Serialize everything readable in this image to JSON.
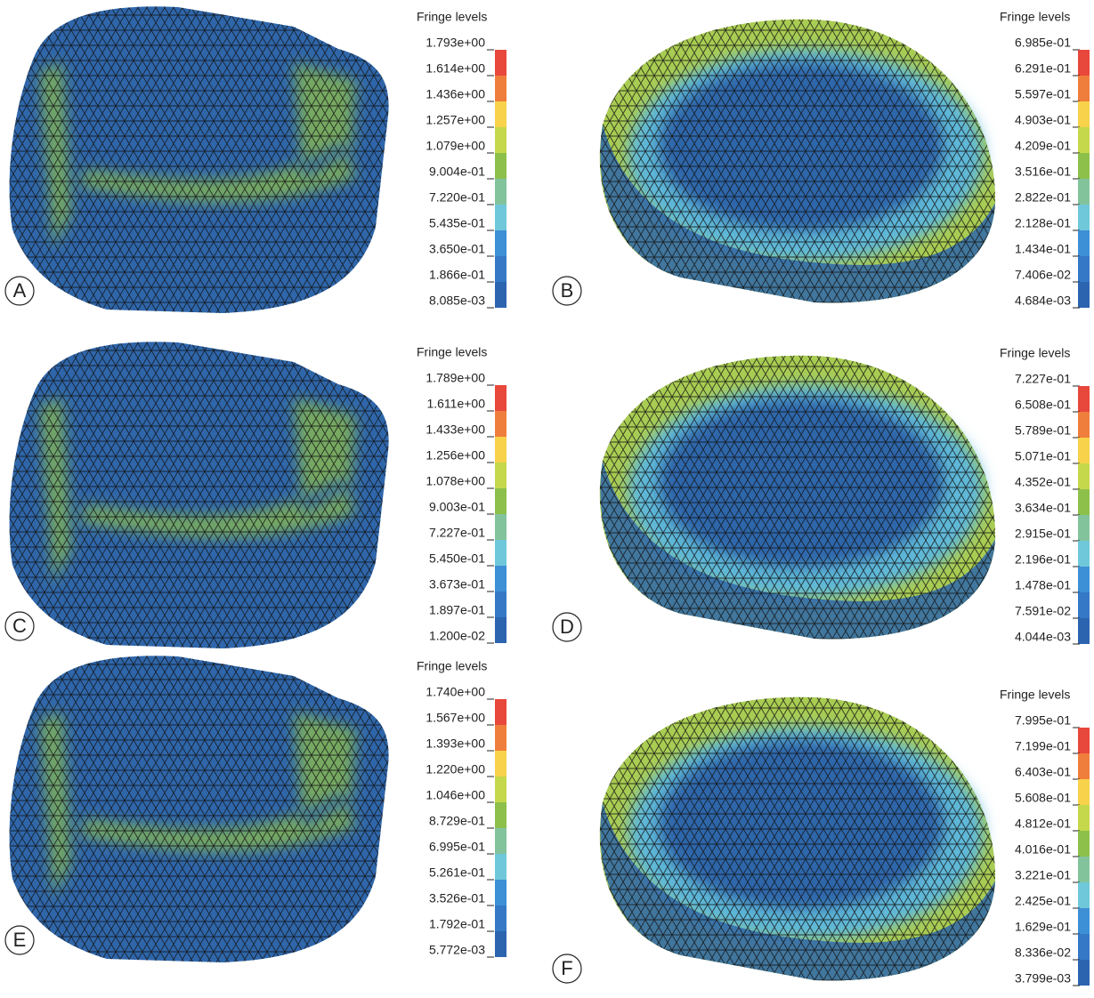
{
  "panels": [
    {
      "label": "A",
      "legend_title": "Fringe levels",
      "levels": [
        "1.793e+00",
        "1.614e+00",
        "1.436e+00",
        "1.257e+00",
        "1.079e+00",
        "9.004e-01",
        "7.220e-01",
        "5.435e-01",
        "3.650e-01",
        "1.866e-01",
        "8.085e-03"
      ]
    },
    {
      "label": "B",
      "legend_title": "Fringe levels",
      "levels": [
        "6.985e-01",
        "6.291e-01",
        "5.597e-01",
        "4.903e-01",
        "4.209e-01",
        "3.516e-01",
        "2.822e-01",
        "2.128e-01",
        "1.434e-01",
        "7.406e-02",
        "4.684e-03"
      ]
    },
    {
      "label": "C",
      "legend_title": "Fringe levels",
      "levels": [
        "1.789e+00",
        "1.611e+00",
        "1.433e+00",
        "1.256e+00",
        "1.078e+00",
        "9.003e-01",
        "7.227e-01",
        "5.450e-01",
        "3.673e-01",
        "1.897e-01",
        "1.200e-02"
      ]
    },
    {
      "label": "D",
      "legend_title": "Fringe levels",
      "levels": [
        "7.227e-01",
        "6.508e-01",
        "5.789e-01",
        "5.071e-01",
        "4.352e-01",
        "3.634e-01",
        "2.915e-01",
        "2.196e-01",
        "1.478e-01",
        "7.591e-02",
        "4.044e-03"
      ]
    },
    {
      "label": "E",
      "legend_title": "Fringe levels",
      "levels": [
        "1.740e+00",
        "1.567e+00",
        "1.393e+00",
        "1.220e+00",
        "1.046e+00",
        "8.729e-01",
        "6.995e-01",
        "5.261e-01",
        "3.526e-01",
        "1.792e-01",
        "5.772e-03"
      ]
    },
    {
      "label": "F",
      "legend_title": "Fringe levels",
      "levels": [
        "7.995e-01",
        "7.199e-01",
        "6.403e-01",
        "5.608e-01",
        "4.812e-01",
        "4.016e-01",
        "3.221e-01",
        "2.425e-01",
        "1.629e-01",
        "8.336e-02",
        "3.799e-03"
      ]
    }
  ]
}
